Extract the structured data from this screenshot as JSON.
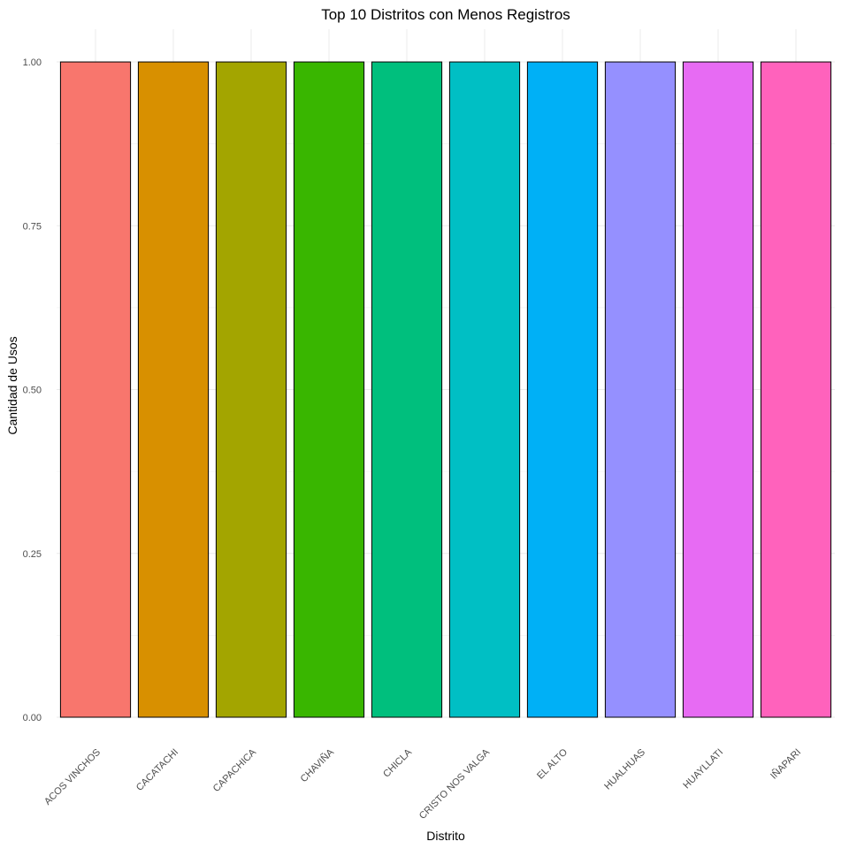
{
  "chart_data": {
    "type": "bar",
    "title": "Top 10 Distritos con Menos Registros",
    "xlabel": "Distrito",
    "ylabel": "Cantidad de Usos",
    "categories": [
      "ACOS VINCHOS",
      "CACATACHI",
      "CAPACHICA",
      "CHAVIÑA",
      "CHICLA",
      "CRISTO NOS VALGA",
      "EL ALTO",
      "HUALHUAS",
      "HUAYLLATI",
      "IÑAPARI"
    ],
    "values": [
      1,
      1,
      1,
      1,
      1,
      1,
      1,
      1,
      1,
      1
    ],
    "colors": [
      "#F8766D",
      "#D89000",
      "#A3A500",
      "#39B600",
      "#00BF7D",
      "#00BFC4",
      "#00B0F6",
      "#9590FF",
      "#E76BF3",
      "#FF62BC"
    ],
    "y_ticks": [
      "0.00",
      "0.25",
      "0.50",
      "0.75",
      "1.00"
    ],
    "ylim": [
      0,
      1.05
    ],
    "grid": true,
    "legend": "none"
  }
}
